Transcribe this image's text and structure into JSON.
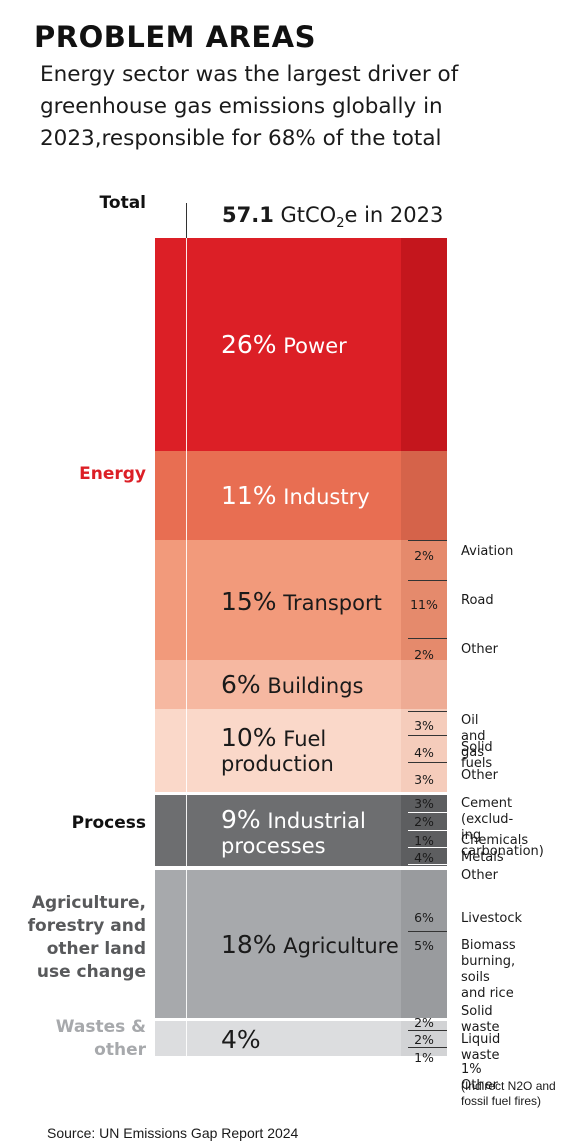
{
  "header": {
    "title": "PROBLEM AREAS",
    "subtitle_lines": [
      "Energy sector was the largest driver of",
      "greenhouse gas emissions globally in",
      "2023,responsible for 68% of the total"
    ]
  },
  "total_label": {
    "value": "57.1",
    "unit": "GtCO",
    "sub": "2",
    "suffix": "e in 2023"
  },
  "categories": {
    "total": "Total",
    "energy": "Energy",
    "process": "Process",
    "agriculture": "Agriculture,\nforestry and\nother land\nuse change",
    "wastes": "Wastes &\nother"
  },
  "chart_data": {
    "type": "bar",
    "title": "57.1 GtCO2e in 2023",
    "unit": "%",
    "total": 57.1,
    "sectors": [
      {
        "group": "Energy",
        "name": "Power",
        "value": 26,
        "color": "#dc1f26",
        "subs": []
      },
      {
        "group": "Energy",
        "name": "Industry",
        "value": 11,
        "color": "#e86e52",
        "subs": []
      },
      {
        "group": "Energy",
        "name": "Transport",
        "value": 15,
        "color": "#f29a7b",
        "subs": [
          {
            "name": "Aviation",
            "value": 2
          },
          {
            "name": "Road",
            "value": 11
          },
          {
            "name": "Other",
            "value": 2
          }
        ]
      },
      {
        "group": "Energy",
        "name": "Buildings",
        "value": 6,
        "color": "#f6b8a1",
        "subs": []
      },
      {
        "group": "Energy",
        "name": "Fuel\nproduction",
        "value": 10,
        "color": "#fad8c9",
        "subs": [
          {
            "name": "Oil and gas",
            "value": 3
          },
          {
            "name": "Solid fuels",
            "value": 4
          },
          {
            "name": "Other",
            "value": 3
          }
        ]
      },
      {
        "group": "Process",
        "name": "Industrial\nprocesses",
        "value": 9,
        "color": "#6d6e70",
        "subs": [
          {
            "name": "Cement (exclud-\ning carbonation)",
            "value": 3
          },
          {
            "name": "Chemicals",
            "value": 2
          },
          {
            "name": "Metals",
            "value": 1
          },
          {
            "name": "Other",
            "value": 4
          }
        ]
      },
      {
        "group": "Agriculture, forestry and other land use change",
        "name": "Agriculture",
        "value": 18,
        "color": "#a7a9ac",
        "subs": [
          {
            "name": "Livestock",
            "value": 6
          },
          {
            "name": "Biomass\nburning, soils\nand rice",
            "value": 5
          }
        ]
      },
      {
        "group": "Wastes & other",
        "name": "",
        "value": 4,
        "color": "#dcdddf",
        "subs": [
          {
            "name": "Solid waste",
            "value": 2
          },
          {
            "name": "Liquid waste",
            "value": 2
          },
          {
            "name": "1% Other",
            "value": 1
          }
        ]
      }
    ],
    "other_note": "(Indirect N2O and\nfossil fuel fires)"
  },
  "colors": {
    "energy_label": "#dc1f26",
    "process_label": "#1a1a1a",
    "agri_label": "#58595b",
    "wastes_label": "#a7a9ac"
  },
  "source": "Source: UN Emissions Gap Report 2024"
}
